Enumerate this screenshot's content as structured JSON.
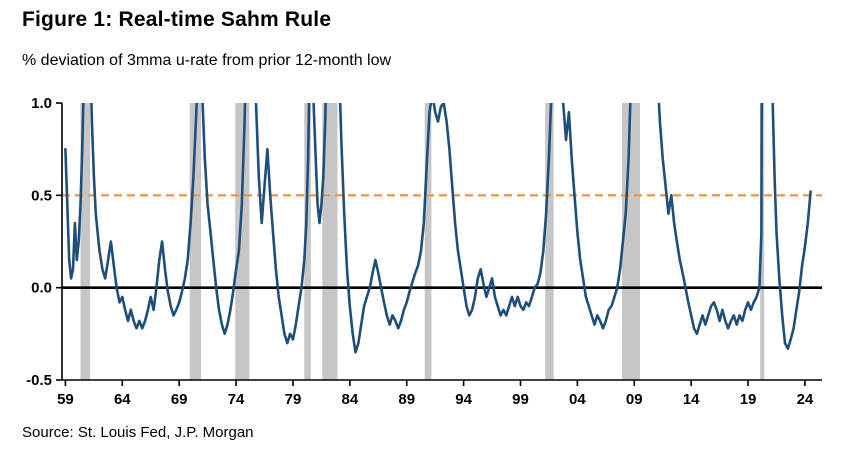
{
  "figure": {
    "title": "Figure 1: Real-time Sahm Rule",
    "subtitle": "% deviation of 3mma u-rate from prior 12-month low",
    "source": "Source: St. Louis Fed, J.P. Morgan"
  },
  "chart_data": {
    "type": "line",
    "title": "Figure 1: Real-time Sahm Rule",
    "subtitle": "% deviation of 3mma u-rate from prior 12-month low",
    "xlabel": "",
    "ylabel": "% deviation of 3mma u-rate from prior 12-month low",
    "xlim": [
      1958.7,
      2025.5
    ],
    "ylim": [
      -0.5,
      1.0
    ],
    "grid": false,
    "legend": "none",
    "x_ticks": {
      "values": [
        1959,
        1964,
        1969,
        1974,
        1979,
        1984,
        1989,
        1994,
        1999,
        2004,
        2009,
        2014,
        2019,
        2024
      ],
      "labels": [
        "59",
        "64",
        "69",
        "74",
        "79",
        "84",
        "89",
        "94",
        "99",
        "04",
        "09",
        "14",
        "19",
        "24"
      ]
    },
    "y_ticks": {
      "values": [
        1.0,
        0.5,
        0.0,
        -0.5
      ],
      "labels": [
        "1.0",
        "0.5",
        "0.0",
        "-0.5"
      ]
    },
    "threshold": {
      "value": 0.5,
      "style": "dashed"
    },
    "zero_line": {
      "value": 0.0
    },
    "colors": {
      "line": "#1F4E79",
      "threshold": "#F79646",
      "recession_band": "#C6C6C6",
      "axis": "#000000"
    },
    "recessions": [
      [
        1960.33,
        1961.17
      ],
      [
        1969.92,
        1970.92
      ],
      [
        1973.92,
        1975.17
      ],
      [
        1980.0,
        1980.58
      ],
      [
        1981.58,
        1982.92
      ],
      [
        1990.58,
        1991.17
      ],
      [
        2001.17,
        2001.92
      ],
      [
        2007.92,
        2009.5
      ],
      [
        2020.08,
        2020.42
      ]
    ],
    "series": [
      {
        "name": "Real-time Sahm Rule",
        "color": "#1F4E79",
        "points": [
          [
            1959.0,
            0.75
          ],
          [
            1959.17,
            0.45
          ],
          [
            1959.33,
            0.15
          ],
          [
            1959.5,
            0.05
          ],
          [
            1959.67,
            0.1
          ],
          [
            1959.83,
            0.35
          ],
          [
            1960.0,
            0.15
          ],
          [
            1960.17,
            0.25
          ],
          [
            1960.33,
            0.45
          ],
          [
            1960.5,
            0.8
          ],
          [
            1960.67,
            1.3
          ],
          [
            1961.0,
            1.6
          ],
          [
            1961.17,
            1.3
          ],
          [
            1961.33,
            0.9
          ],
          [
            1961.5,
            0.6
          ],
          [
            1961.67,
            0.4
          ],
          [
            1961.83,
            0.3
          ],
          [
            1962.0,
            0.2
          ],
          [
            1962.25,
            0.1
          ],
          [
            1962.5,
            0.05
          ],
          [
            1962.75,
            0.15
          ],
          [
            1963.0,
            0.25
          ],
          [
            1963.25,
            0.12
          ],
          [
            1963.5,
            0.0
          ],
          [
            1963.75,
            -0.08
          ],
          [
            1964.0,
            -0.05
          ],
          [
            1964.25,
            -0.12
          ],
          [
            1964.5,
            -0.18
          ],
          [
            1964.75,
            -0.12
          ],
          [
            1965.0,
            -0.18
          ],
          [
            1965.25,
            -0.22
          ],
          [
            1965.5,
            -0.18
          ],
          [
            1965.75,
            -0.22
          ],
          [
            1966.0,
            -0.18
          ],
          [
            1966.25,
            -0.12
          ],
          [
            1966.5,
            -0.05
          ],
          [
            1966.75,
            -0.12
          ],
          [
            1967.0,
            0.0
          ],
          [
            1967.25,
            0.15
          ],
          [
            1967.5,
            0.25
          ],
          [
            1967.75,
            0.1
          ],
          [
            1968.0,
            -0.02
          ],
          [
            1968.25,
            -0.1
          ],
          [
            1968.5,
            -0.15
          ],
          [
            1968.75,
            -0.12
          ],
          [
            1969.0,
            -0.08
          ],
          [
            1969.25,
            -0.02
          ],
          [
            1969.5,
            0.05
          ],
          [
            1969.75,
            0.15
          ],
          [
            1970.0,
            0.35
          ],
          [
            1970.25,
            0.6
          ],
          [
            1970.5,
            0.95
          ],
          [
            1970.75,
            1.3
          ],
          [
            1971.0,
            1.1
          ],
          [
            1971.25,
            0.7
          ],
          [
            1971.5,
            0.45
          ],
          [
            1971.75,
            0.3
          ],
          [
            1972.0,
            0.15
          ],
          [
            1972.25,
            0.0
          ],
          [
            1972.5,
            -0.12
          ],
          [
            1972.75,
            -0.2
          ],
          [
            1973.0,
            -0.25
          ],
          [
            1973.25,
            -0.2
          ],
          [
            1973.5,
            -0.12
          ],
          [
            1973.75,
            -0.02
          ],
          [
            1974.0,
            0.1
          ],
          [
            1974.25,
            0.2
          ],
          [
            1974.5,
            0.45
          ],
          [
            1974.75,
            0.9
          ],
          [
            1975.0,
            1.6
          ],
          [
            1975.5,
            1.4
          ],
          [
            1975.75,
            1.0
          ],
          [
            1976.0,
            0.6
          ],
          [
            1976.25,
            0.35
          ],
          [
            1976.5,
            0.55
          ],
          [
            1976.75,
            0.75
          ],
          [
            1977.0,
            0.5
          ],
          [
            1977.25,
            0.3
          ],
          [
            1977.5,
            0.1
          ],
          [
            1977.75,
            -0.05
          ],
          [
            1978.0,
            -0.15
          ],
          [
            1978.25,
            -0.25
          ],
          [
            1978.5,
            -0.3
          ],
          [
            1978.75,
            -0.25
          ],
          [
            1979.0,
            -0.28
          ],
          [
            1979.25,
            -0.2
          ],
          [
            1979.5,
            -0.1
          ],
          [
            1979.75,
            0.0
          ],
          [
            1980.0,
            0.15
          ],
          [
            1980.17,
            0.35
          ],
          [
            1980.33,
            0.7
          ],
          [
            1980.5,
            1.3
          ],
          [
            1980.75,
            1.1
          ],
          [
            1981.0,
            0.7
          ],
          [
            1981.17,
            0.45
          ],
          [
            1981.33,
            0.35
          ],
          [
            1981.5,
            0.45
          ],
          [
            1981.67,
            0.6
          ],
          [
            1981.83,
            0.9
          ],
          [
            1982.0,
            1.3
          ],
          [
            1982.5,
            1.6
          ],
          [
            1983.0,
            1.3
          ],
          [
            1983.25,
            0.8
          ],
          [
            1983.5,
            0.4
          ],
          [
            1983.75,
            0.1
          ],
          [
            1984.0,
            -0.1
          ],
          [
            1984.25,
            -0.25
          ],
          [
            1984.5,
            -0.35
          ],
          [
            1984.75,
            -0.3
          ],
          [
            1985.0,
            -0.2
          ],
          [
            1985.25,
            -0.1
          ],
          [
            1985.5,
            -0.05
          ],
          [
            1985.75,
            0.0
          ],
          [
            1986.0,
            0.08
          ],
          [
            1986.25,
            0.15
          ],
          [
            1986.5,
            0.08
          ],
          [
            1986.75,
            0.0
          ],
          [
            1987.0,
            -0.08
          ],
          [
            1987.25,
            -0.15
          ],
          [
            1987.5,
            -0.2
          ],
          [
            1987.75,
            -0.15
          ],
          [
            1988.0,
            -0.18
          ],
          [
            1988.25,
            -0.22
          ],
          [
            1988.5,
            -0.18
          ],
          [
            1988.75,
            -0.12
          ],
          [
            1989.0,
            -0.08
          ],
          [
            1989.25,
            -0.02
          ],
          [
            1989.5,
            0.03
          ],
          [
            1989.75,
            0.08
          ],
          [
            1990.0,
            0.12
          ],
          [
            1990.25,
            0.2
          ],
          [
            1990.5,
            0.35
          ],
          [
            1990.75,
            0.65
          ],
          [
            1991.0,
            0.95
          ],
          [
            1991.25,
            1.05
          ],
          [
            1991.5,
            0.95
          ],
          [
            1991.75,
            0.9
          ],
          [
            1992.0,
            0.98
          ],
          [
            1992.25,
            1.0
          ],
          [
            1992.5,
            0.9
          ],
          [
            1992.75,
            0.75
          ],
          [
            1993.0,
            0.55
          ],
          [
            1993.25,
            0.35
          ],
          [
            1993.5,
            0.2
          ],
          [
            1993.75,
            0.1
          ],
          [
            1994.0,
            0.0
          ],
          [
            1994.25,
            -0.1
          ],
          [
            1994.5,
            -0.15
          ],
          [
            1994.75,
            -0.12
          ],
          [
            1995.0,
            -0.05
          ],
          [
            1995.25,
            0.05
          ],
          [
            1995.5,
            0.1
          ],
          [
            1995.75,
            0.02
          ],
          [
            1996.0,
            -0.05
          ],
          [
            1996.25,
            0.0
          ],
          [
            1996.5,
            0.05
          ],
          [
            1996.75,
            -0.05
          ],
          [
            1997.0,
            -0.1
          ],
          [
            1997.25,
            -0.15
          ],
          [
            1997.5,
            -0.12
          ],
          [
            1997.75,
            -0.15
          ],
          [
            1998.0,
            -0.1
          ],
          [
            1998.25,
            -0.05
          ],
          [
            1998.5,
            -0.1
          ],
          [
            1998.75,
            -0.05
          ],
          [
            1999.0,
            -0.1
          ],
          [
            1999.25,
            -0.12
          ],
          [
            1999.5,
            -0.08
          ],
          [
            1999.75,
            -0.1
          ],
          [
            2000.0,
            -0.05
          ],
          [
            2000.25,
            0.0
          ],
          [
            2000.5,
            0.02
          ],
          [
            2000.75,
            0.08
          ],
          [
            2001.0,
            0.2
          ],
          [
            2001.25,
            0.4
          ],
          [
            2001.5,
            0.7
          ],
          [
            2001.75,
            1.1
          ],
          [
            2002.0,
            1.4
          ],
          [
            2002.5,
            1.2
          ],
          [
            2002.75,
            1.0
          ],
          [
            2003.0,
            0.8
          ],
          [
            2003.25,
            0.95
          ],
          [
            2003.5,
            0.7
          ],
          [
            2003.75,
            0.5
          ],
          [
            2004.0,
            0.3
          ],
          [
            2004.25,
            0.15
          ],
          [
            2004.5,
            0.05
          ],
          [
            2004.75,
            -0.05
          ],
          [
            2005.0,
            -0.1
          ],
          [
            2005.25,
            -0.15
          ],
          [
            2005.5,
            -0.2
          ],
          [
            2005.75,
            -0.15
          ],
          [
            2006.0,
            -0.18
          ],
          [
            2006.25,
            -0.22
          ],
          [
            2006.5,
            -0.18
          ],
          [
            2006.75,
            -0.12
          ],
          [
            2007.0,
            -0.1
          ],
          [
            2007.25,
            -0.05
          ],
          [
            2007.5,
            0.0
          ],
          [
            2007.75,
            0.1
          ],
          [
            2008.0,
            0.25
          ],
          [
            2008.25,
            0.4
          ],
          [
            2008.5,
            0.7
          ],
          [
            2008.75,
            1.2
          ],
          [
            2009.0,
            2.2
          ],
          [
            2009.5,
            3.5
          ],
          [
            2010.0,
            2.5
          ],
          [
            2010.5,
            1.8
          ],
          [
            2011.0,
            1.2
          ],
          [
            2011.25,
            0.9
          ],
          [
            2011.5,
            0.7
          ],
          [
            2011.75,
            0.55
          ],
          [
            2012.0,
            0.4
          ],
          [
            2012.25,
            0.5
          ],
          [
            2012.5,
            0.35
          ],
          [
            2012.75,
            0.25
          ],
          [
            2013.0,
            0.15
          ],
          [
            2013.25,
            0.08
          ],
          [
            2013.5,
            0.0
          ],
          [
            2013.75,
            -0.08
          ],
          [
            2014.0,
            -0.15
          ],
          [
            2014.25,
            -0.22
          ],
          [
            2014.5,
            -0.25
          ],
          [
            2014.75,
            -0.2
          ],
          [
            2015.0,
            -0.15
          ],
          [
            2015.25,
            -0.2
          ],
          [
            2015.5,
            -0.15
          ],
          [
            2015.75,
            -0.1
          ],
          [
            2016.0,
            -0.08
          ],
          [
            2016.25,
            -0.12
          ],
          [
            2016.5,
            -0.18
          ],
          [
            2016.75,
            -0.12
          ],
          [
            2017.0,
            -0.18
          ],
          [
            2017.25,
            -0.22
          ],
          [
            2017.5,
            -0.18
          ],
          [
            2017.75,
            -0.15
          ],
          [
            2018.0,
            -0.2
          ],
          [
            2018.25,
            -0.15
          ],
          [
            2018.5,
            -0.18
          ],
          [
            2018.75,
            -0.12
          ],
          [
            2019.0,
            -0.08
          ],
          [
            2019.25,
            -0.12
          ],
          [
            2019.5,
            -0.08
          ],
          [
            2019.75,
            -0.05
          ],
          [
            2020.0,
            0.0
          ],
          [
            2020.17,
            0.3
          ],
          [
            2020.33,
            4.5
          ],
          [
            2020.75,
            3.0
          ],
          [
            2021.0,
            1.6
          ],
          [
            2021.17,
            1.0
          ],
          [
            2021.33,
            0.6
          ],
          [
            2021.5,
            0.3
          ],
          [
            2021.75,
            0.05
          ],
          [
            2022.0,
            -0.15
          ],
          [
            2022.25,
            -0.3
          ],
          [
            2022.5,
            -0.33
          ],
          [
            2022.75,
            -0.28
          ],
          [
            2023.0,
            -0.22
          ],
          [
            2023.25,
            -0.12
          ],
          [
            2023.5,
            -0.02
          ],
          [
            2023.75,
            0.12
          ],
          [
            2024.0,
            0.22
          ],
          [
            2024.25,
            0.35
          ],
          [
            2024.5,
            0.52
          ]
        ]
      }
    ]
  }
}
